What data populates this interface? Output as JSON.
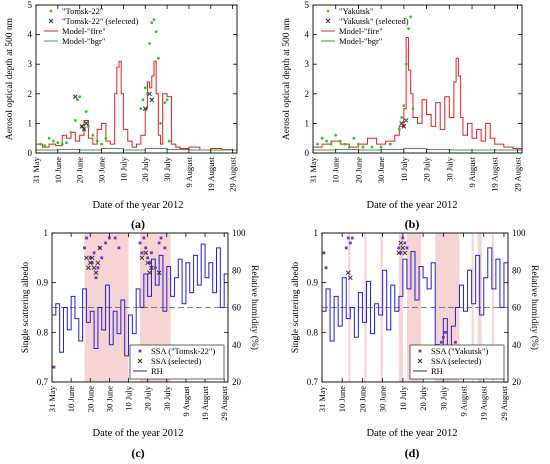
{
  "figure": {
    "x_axis_label": "Date of the year 2012"
  },
  "chart_data": [
    {
      "panel": "(a)",
      "type": "line",
      "ylabel": "Aerosol optical depth at 500 nm",
      "xlabel": "Date of the year 2012",
      "xlim": [
        0,
        92
      ],
      "ylim": [
        0,
        5
      ],
      "yticks": [
        0,
        1,
        2,
        3,
        4,
        5
      ],
      "xticks": [
        {
          "day": 0,
          "label": "31 May"
        },
        {
          "day": 10,
          "label": "10 June"
        },
        {
          "day": 20,
          "label": "20 June"
        },
        {
          "day": 30,
          "label": "30 June"
        },
        {
          "day": 40,
          "label": "10 July"
        },
        {
          "day": 50,
          "label": "20 July"
        },
        {
          "day": 60,
          "label": "30 July"
        },
        {
          "day": 70,
          "label": "9 August"
        },
        {
          "day": 80,
          "label": "19 August"
        },
        {
          "day": 90,
          "label": "29 August"
        }
      ],
      "legend": [
        "\"Tomsk-22\"",
        "\"Tomsk-22\" (selected)",
        "Model-\"fire\"",
        "Model-\"bgr\""
      ],
      "legend_position": "top-left",
      "colors": {
        "obs": "#22cc22",
        "selected": "#333333",
        "fire": "#e02020",
        "bgr": "#4a9a4a"
      },
      "series": [
        {
          "name": "Model-\"fire\"",
          "x": [
            0,
            3,
            6,
            9,
            12,
            14,
            16,
            18,
            20,
            22,
            24,
            26,
            28,
            30,
            32,
            34,
            36,
            37,
            38,
            39,
            40,
            42,
            44,
            46,
            48,
            50,
            51,
            52,
            53,
            54,
            55,
            56,
            57,
            58,
            60,
            62,
            64,
            66,
            70,
            75,
            80,
            85,
            90,
            92
          ],
          "y": [
            0.3,
            0.2,
            0.3,
            0.25,
            0.6,
            0.5,
            0.7,
            0.4,
            0.6,
            1.1,
            0.5,
            0.3,
            0.8,
            1.0,
            0.4,
            0.3,
            2.0,
            2.9,
            3.1,
            2.0,
            0.8,
            0.4,
            0.2,
            0.3,
            0.6,
            1.5,
            2.4,
            2.2,
            2.6,
            3.1,
            2.0,
            0.6,
            0.3,
            2.0,
            1.9,
            0.3,
            0.2,
            0.15,
            0.2,
            0.1,
            0.15,
            0.12,
            0.1,
            0.1
          ]
        },
        {
          "name": "Model-\"bgr\"",
          "x": [
            0,
            10,
            20,
            30,
            40,
            50,
            60,
            70,
            80,
            92
          ],
          "y": [
            0.1,
            0.12,
            0.1,
            0.15,
            0.1,
            0.15,
            0.12,
            0.1,
            0.1,
            0.1
          ]
        },
        {
          "name": "\"Tomsk-22\"",
          "x": [
            2,
            4,
            6,
            8,
            10,
            12,
            14,
            16,
            18,
            19,
            20,
            21,
            22,
            23,
            24,
            26,
            28,
            30,
            32,
            48,
            49,
            50,
            51,
            52,
            53,
            54,
            55,
            56,
            57,
            59,
            60,
            61
          ],
          "y": [
            0.3,
            0.25,
            0.5,
            0.4,
            0.35,
            0.3,
            0.35,
            0.7,
            1.1,
            1.8,
            1.9,
            0.9,
            0.8,
            1.4,
            0.9,
            0.6,
            0.4,
            0.3,
            0.5,
            1.5,
            1.8,
            2.2,
            2.0,
            3.7,
            4.4,
            4.5,
            4.1,
            3.2,
            1.0,
            1.7,
            1.8,
            0.4
          ]
        },
        {
          "name": "\"Tomsk-22\" (selected)",
          "x": [
            18,
            21,
            22,
            23,
            50,
            52,
            53
          ],
          "y": [
            1.9,
            0.9,
            0.8,
            1.0,
            1.5,
            2.0,
            1.8
          ]
        }
      ]
    },
    {
      "panel": "(b)",
      "type": "line",
      "ylabel": "Aerosol optical depth at 500 nm",
      "xlabel": "Date of the year 2012",
      "xlim": [
        0,
        92
      ],
      "ylim": [
        0,
        5
      ],
      "yticks": [
        0,
        1,
        2,
        3,
        4,
        5
      ],
      "xticks": [
        {
          "day": 0,
          "label": "31 May"
        },
        {
          "day": 10,
          "label": "10 June"
        },
        {
          "day": 20,
          "label": "20 June"
        },
        {
          "day": 30,
          "label": "30 June"
        },
        {
          "day": 40,
          "label": "10 July"
        },
        {
          "day": 50,
          "label": "20 July"
        },
        {
          "day": 60,
          "label": "30 July"
        },
        {
          "day": 70,
          "label": "9 August"
        },
        {
          "day": 80,
          "label": "19 August"
        },
        {
          "day": 90,
          "label": "29 August"
        }
      ],
      "legend": [
        "\"Yakutsk\"",
        "\"Yakutsk\" (selected)",
        "Model-\"fire\"",
        "Model-\"bgr\""
      ],
      "legend_position": "top-left",
      "colors": {
        "obs": "#22cc22",
        "selected": "#333333",
        "fire": "#e02020",
        "bgr": "#4a9a4a"
      },
      "series": [
        {
          "name": "Model-\"fire\"",
          "x": [
            0,
            4,
            8,
            12,
            16,
            20,
            24,
            28,
            32,
            36,
            38,
            40,
            41,
            42,
            43,
            44,
            46,
            48,
            50,
            52,
            54,
            56,
            58,
            60,
            62,
            63,
            64,
            65,
            66,
            68,
            70,
            72,
            74,
            76,
            78,
            80,
            84,
            88,
            92
          ],
          "y": [
            0.2,
            0.3,
            0.4,
            0.3,
            0.2,
            0.3,
            0.5,
            0.3,
            0.4,
            0.6,
            0.9,
            1.5,
            3.9,
            2.8,
            2.0,
            1.2,
            1.0,
            1.8,
            1.3,
            0.9,
            1.7,
            0.8,
            1.9,
            1.2,
            2.4,
            3.2,
            2.6,
            1.2,
            0.6,
            1.0,
            0.5,
            0.8,
            0.4,
            1.0,
            0.5,
            0.3,
            0.2,
            0.15,
            0.1
          ]
        },
        {
          "name": "Model-\"bgr\"",
          "x": [
            0,
            10,
            20,
            30,
            40,
            50,
            60,
            70,
            80,
            92
          ],
          "y": [
            0.1,
            0.12,
            0.1,
            0.12,
            0.15,
            0.12,
            0.1,
            0.1,
            0.1,
            0.1
          ]
        },
        {
          "name": "\"Yakutsk\"",
          "x": [
            2,
            4,
            6,
            8,
            10,
            12,
            14,
            16,
            18,
            20,
            22,
            26,
            30,
            34,
            38,
            39,
            40,
            41,
            42,
            43,
            44
          ],
          "y": [
            0.3,
            0.5,
            0.4,
            0.3,
            0.6,
            0.4,
            0.3,
            0.2,
            0.5,
            0.3,
            0.2,
            0.2,
            0.2,
            0.3,
            0.8,
            1.2,
            1.6,
            3.0,
            4.2,
            4.6,
            1.5
          ]
        },
        {
          "name": "\"Yakutsk\" (selected)",
          "x": [
            39,
            40,
            41
          ],
          "y": [
            1.0,
            0.9,
            1.1
          ]
        }
      ]
    },
    {
      "panel": "(c)",
      "type": "line",
      "ylabel": "Single scattering albedo",
      "ylabel_right": "Relative humidity (%)",
      "xlabel": "Date of the year 2012",
      "xlim": [
        0,
        92
      ],
      "ylim": [
        0.7,
        1.0
      ],
      "yticks": [
        0.7,
        0.8,
        0.9,
        1.0
      ],
      "ylim_right": [
        20,
        100
      ],
      "yticks_right": [
        20,
        40,
        60,
        80,
        100
      ],
      "reference_line": 0.85,
      "shaded_periods": [
        [
          17,
          40
        ],
        [
          46,
          62
        ]
      ],
      "xticks": [
        {
          "day": 0,
          "label": "31 May"
        },
        {
          "day": 10,
          "label": "10 June"
        },
        {
          "day": 20,
          "label": "20 June"
        },
        {
          "day": 30,
          "label": "30 June"
        },
        {
          "day": 40,
          "label": "10 July"
        },
        {
          "day": 50,
          "label": "20 July"
        },
        {
          "day": 60,
          "label": "30 July"
        },
        {
          "day": 70,
          "label": "9 August"
        },
        {
          "day": 80,
          "label": "19 August"
        },
        {
          "day": 90,
          "label": "29 August"
        }
      ],
      "legend": [
        "SSA (\"Tomsk-22\")",
        "SSA (selected)",
        "RH"
      ],
      "legend_position": "bottom-right",
      "colors": {
        "ssa": "#7b2cc9",
        "selected": "#333333",
        "rh": "#2020d0",
        "shade": "#f6d4d4"
      },
      "series": [
        {
          "name": "RH",
          "axis": "right",
          "x": [
            0,
            2,
            4,
            6,
            8,
            10,
            12,
            14,
            16,
            18,
            20,
            22,
            24,
            26,
            28,
            30,
            32,
            34,
            36,
            38,
            40,
            42,
            44,
            46,
            48,
            50,
            52,
            54,
            56,
            58,
            60,
            62,
            64,
            66,
            68,
            70,
            72,
            74,
            76,
            78,
            80,
            82,
            84,
            86,
            88,
            90,
            92
          ],
          "y": [
            56,
            62,
            36,
            60,
            48,
            66,
            54,
            42,
            70,
            52,
            58,
            38,
            60,
            48,
            72,
            40,
            58,
            46,
            64,
            34,
            56,
            46,
            70,
            60,
            78,
            66,
            86,
            72,
            88,
            58,
            82,
            66,
            76,
            86,
            62,
            84,
            68,
            88,
            72,
            94,
            76,
            84,
            68,
            92,
            60,
            78,
            70
          ]
        },
        {
          "name": "SSA (\"Tomsk-22\")",
          "x": [
            1,
            17,
            18,
            20,
            21,
            22,
            23,
            24,
            25,
            26,
            28,
            30,
            33,
            35,
            46,
            47,
            48,
            49,
            50,
            51,
            52,
            54,
            56,
            57,
            59
          ],
          "y": [
            0.73,
            0.97,
            0.99,
            0.95,
            0.94,
            0.96,
            0.91,
            0.93,
            0.97,
            0.95,
            0.98,
            0.99,
            0.99,
            0.97,
            0.98,
            0.96,
            0.99,
            0.97,
            0.95,
            0.94,
            0.96,
            0.93,
            0.98,
            0.99,
            0.97
          ]
        },
        {
          "name": "SSA (selected)",
          "x": [
            18,
            19,
            20,
            21,
            22,
            23,
            24,
            25,
            47,
            49,
            50,
            51,
            52,
            56
          ],
          "y": [
            0.95,
            0.93,
            0.94,
            0.95,
            0.93,
            0.92,
            0.94,
            0.97,
            0.95,
            0.96,
            0.94,
            0.92,
            0.93,
            0.92
          ]
        }
      ]
    },
    {
      "panel": "(d)",
      "type": "line",
      "ylabel": "Single scattering albedo",
      "ylabel_right": "Relative humidity (%)",
      "xlabel": "Date of the year 2012",
      "xlim": [
        0,
        92
      ],
      "ylim": [
        0.7,
        1.0
      ],
      "yticks": [
        0.7,
        0.8,
        0.9,
        1.0
      ],
      "ylim_right": [
        20,
        100
      ],
      "yticks_right": [
        20,
        40,
        60,
        80,
        100
      ],
      "reference_line": 0.85,
      "shaded_periods": [
        [
          13,
          14
        ],
        [
          21,
          22
        ],
        [
          29,
          30
        ],
        [
          38,
          40
        ],
        [
          42,
          49
        ],
        [
          56,
          68
        ],
        [
          74,
          75
        ],
        [
          77,
          79
        ],
        [
          84,
          85
        ]
      ],
      "xticks": [
        {
          "day": 0,
          "label": "31 May"
        },
        {
          "day": 10,
          "label": "10 June"
        },
        {
          "day": 20,
          "label": "20 June"
        },
        {
          "day": 30,
          "label": "30 June"
        },
        {
          "day": 40,
          "label": "10 July"
        },
        {
          "day": 50,
          "label": "20 July"
        },
        {
          "day": 60,
          "label": "30 July"
        },
        {
          "day": 70,
          "label": "9 August"
        },
        {
          "day": 80,
          "label": "19 August"
        },
        {
          "day": 90,
          "label": "29 August"
        }
      ],
      "legend": [
        "SSA (\"Yakutsk\")",
        "SSA (selected)",
        "RH"
      ],
      "legend_position": "bottom-right",
      "colors": {
        "ssa": "#7b2cc9",
        "selected": "#333333",
        "rh": "#2020d0",
        "shade": "#f6d4d4"
      },
      "series": [
        {
          "name": "RH",
          "axis": "right",
          "x": [
            0,
            2,
            4,
            6,
            8,
            10,
            12,
            14,
            16,
            18,
            20,
            22,
            24,
            26,
            28,
            30,
            32,
            34,
            36,
            38,
            40,
            42,
            44,
            46,
            48,
            50,
            52,
            54,
            56,
            58,
            60,
            62,
            64,
            66,
            68,
            70,
            72,
            74,
            76,
            78,
            80,
            82,
            84,
            86,
            88,
            90,
            92
          ],
          "y": [
            58,
            70,
            42,
            66,
            50,
            76,
            54,
            60,
            44,
            68,
            52,
            74,
            46,
            62,
            56,
            80,
            48,
            72,
            58,
            66,
            86,
            70,
            90,
            64,
            82,
            76,
            70,
            84,
            40,
            26,
            54,
            36,
            50,
            60,
            72,
            58,
            80,
            62,
            88,
            56,
            76,
            92,
            70,
            86,
            60,
            84,
            72
          ]
        },
        {
          "name": "SSA (\"Yakutsk\")",
          "x": [
            1,
            2,
            12,
            13,
            14,
            15,
            38,
            39,
            40,
            41,
            42,
            59,
            60,
            61,
            66
          ],
          "y": [
            0.96,
            0.93,
            0.97,
            0.99,
            0.98,
            0.99,
            0.97,
            0.96,
            0.99,
            0.98,
            0.97,
            0.78,
            0.79,
            0.8,
            0.78
          ]
        },
        {
          "name": "SSA (selected)",
          "x": [
            13,
            14,
            38,
            39,
            40,
            41
          ],
          "y": [
            0.92,
            0.91,
            0.96,
            0.98,
            0.97,
            0.96
          ]
        }
      ]
    }
  ],
  "panel_labels": [
    "(a)",
    "(b)",
    "(c)",
    "(d)"
  ]
}
